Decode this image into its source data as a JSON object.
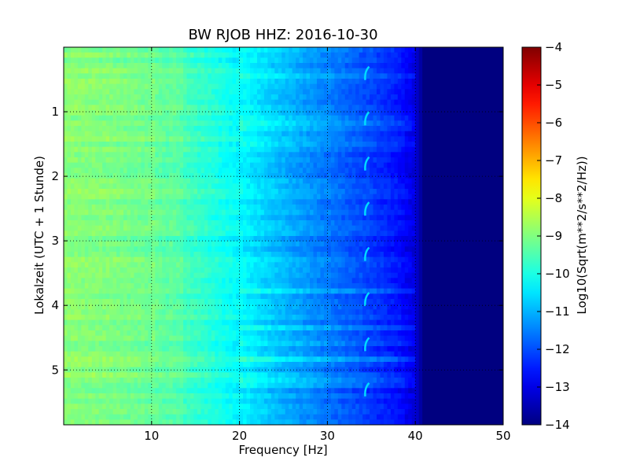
{
  "chart_data": {
    "type": "heatmap",
    "title": "BW RJOB HHZ: 2016-10-30",
    "xlabel": "Frequency [Hz]",
    "ylabel": "Lokalzeit (UTC + 1 Stunde)",
    "xlim": [
      0.0,
      50.0
    ],
    "ylim": [
      5.85,
      0.0
    ],
    "x_ticks": [
      10,
      20,
      30,
      40,
      50
    ],
    "x_tick_labels": [
      "10",
      "20",
      "30",
      "40",
      "50"
    ],
    "y_ticks": [
      1,
      2,
      3,
      4,
      5
    ],
    "y_tick_labels": [
      "1",
      "2",
      "3",
      "4",
      "5"
    ],
    "grid": true,
    "colormap": "jet",
    "colorbar": {
      "label": "Log10(Sqrt(m**2/s**2/Hz))",
      "range": [
        -14,
        -4
      ],
      "ticks": [
        -4,
        -5,
        -6,
        -7,
        -8,
        -9,
        -10,
        -11,
        -12,
        -13,
        -14
      ],
      "tick_labels": [
        "−4",
        "−5",
        "−6",
        "−7",
        "−8",
        "−9",
        "−10",
        "−11",
        "−12",
        "−13",
        "−14"
      ]
    },
    "spectral_profile": {
      "frequency_hz": [
        0,
        5,
        10,
        15,
        20,
        25,
        30,
        35,
        38,
        40,
        41,
        50
      ],
      "log10_amplitude": [
        -8.9,
        -9.0,
        -9.2,
        -9.7,
        -10.3,
        -11.0,
        -11.6,
        -12.2,
        -12.6,
        -13.1,
        -14.0,
        -14.0
      ]
    },
    "narrowband_features": {
      "frequency_hz": 34.3,
      "log10_amplitude": -10.6,
      "times_h": [
        0.4,
        1.1,
        1.8,
        2.5,
        3.2,
        3.9,
        4.6,
        5.3
      ]
    }
  }
}
